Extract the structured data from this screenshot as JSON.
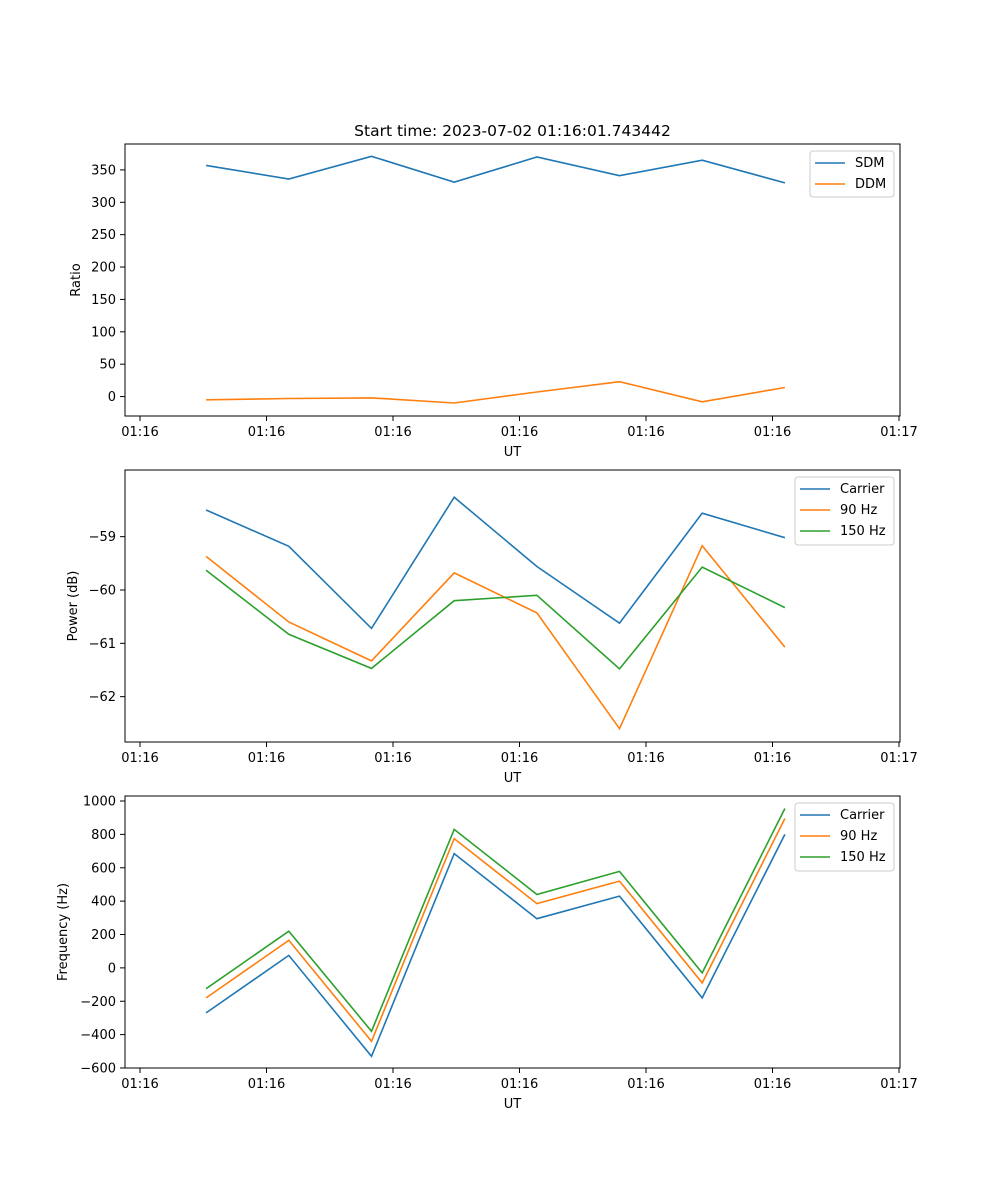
{
  "colors": {
    "c0": "#1f77b4",
    "c1": "#ff7f0e",
    "c2": "#2ca02c"
  },
  "chart_data": [
    {
      "type": "line",
      "title": "Start time: 2023-07-02 01:16:01.743442",
      "xlabel": "UT",
      "ylabel": "Ratio",
      "x": [
        1,
        2,
        3,
        4,
        5,
        6,
        7,
        8
      ],
      "xlim": [
        0.2,
        9.2
      ],
      "xtick_values": [
        0.2,
        1.73,
        3.26,
        4.79,
        6.32,
        7.85,
        9.38
      ],
      "xtick_labels": [
        "01:16",
        "01:16",
        "01:16",
        "01:16",
        "01:16",
        "01:16",
        "01:17"
      ],
      "ylim": [
        -30,
        390
      ],
      "yticks": [
        0,
        50,
        100,
        150,
        200,
        250,
        300,
        350
      ],
      "legend": "top-right",
      "series": [
        {
          "name": "SDM",
          "color": "#1f77b4",
          "values": [
            357,
            336,
            371,
            331,
            370,
            341,
            365,
            330
          ]
        },
        {
          "name": "DDM",
          "color": "#ff7f0e",
          "values": [
            -5,
            -3,
            -2,
            -10,
            7,
            23,
            -8,
            14
          ]
        }
      ]
    },
    {
      "type": "line",
      "title": "",
      "xlabel": "UT",
      "ylabel": "Power (dB)",
      "x": [
        1,
        2,
        3,
        4,
        5,
        6,
        7,
        8
      ],
      "xlim": [
        0.2,
        9.2
      ],
      "xtick_values": [
        0.2,
        1.73,
        3.26,
        4.79,
        6.32,
        7.85,
        9.38
      ],
      "xtick_labels": [
        "01:16",
        "01:16",
        "01:16",
        "01:16",
        "01:16",
        "01:16",
        "01:17"
      ],
      "ylim": [
        -62.85,
        -57.75
      ],
      "yticks": [
        -62,
        -61,
        -60,
        -59
      ],
      "legend": "top-right",
      "series": [
        {
          "name": "Carrier",
          "color": "#1f77b4",
          "values": [
            -58.5,
            -59.18,
            -60.72,
            -58.26,
            -59.56,
            -60.62,
            -58.56,
            -59.02
          ]
        },
        {
          "name": "90 Hz",
          "color": "#ff7f0e",
          "values": [
            -59.37,
            -60.6,
            -61.33,
            -59.68,
            -60.43,
            -62.6,
            -59.17,
            -61.07
          ]
        },
        {
          "name": "150 Hz",
          "color": "#2ca02c",
          "values": [
            -59.63,
            -60.83,
            -61.47,
            -60.2,
            -60.1,
            -61.48,
            -59.57,
            -60.33
          ]
        }
      ]
    },
    {
      "type": "line",
      "title": "",
      "xlabel": "UT",
      "ylabel": "Frequency (Hz)",
      "x": [
        1,
        2,
        3,
        4,
        5,
        6,
        7,
        8
      ],
      "xlim": [
        0.2,
        9.2
      ],
      "xtick_values": [
        0.2,
        1.73,
        3.26,
        4.79,
        6.32,
        7.85,
        9.38
      ],
      "xtick_labels": [
        "01:16",
        "01:16",
        "01:16",
        "01:16",
        "01:16",
        "01:16",
        "01:17"
      ],
      "ylim": [
        -600,
        1030
      ],
      "yticks": [
        -600,
        -400,
        -200,
        0,
        200,
        400,
        600,
        800,
        1000
      ],
      "legend": "top-right",
      "series": [
        {
          "name": "Carrier",
          "color": "#1f77b4",
          "values": [
            -270,
            75,
            -530,
            685,
            295,
            430,
            -180,
            800
          ]
        },
        {
          "name": "90 Hz",
          "color": "#ff7f0e",
          "values": [
            -180,
            165,
            -440,
            775,
            385,
            520,
            -90,
            895
          ]
        },
        {
          "name": "150 Hz",
          "color": "#2ca02c",
          "values": [
            -125,
            220,
            -380,
            830,
            440,
            578,
            -30,
            955
          ]
        }
      ]
    }
  ]
}
